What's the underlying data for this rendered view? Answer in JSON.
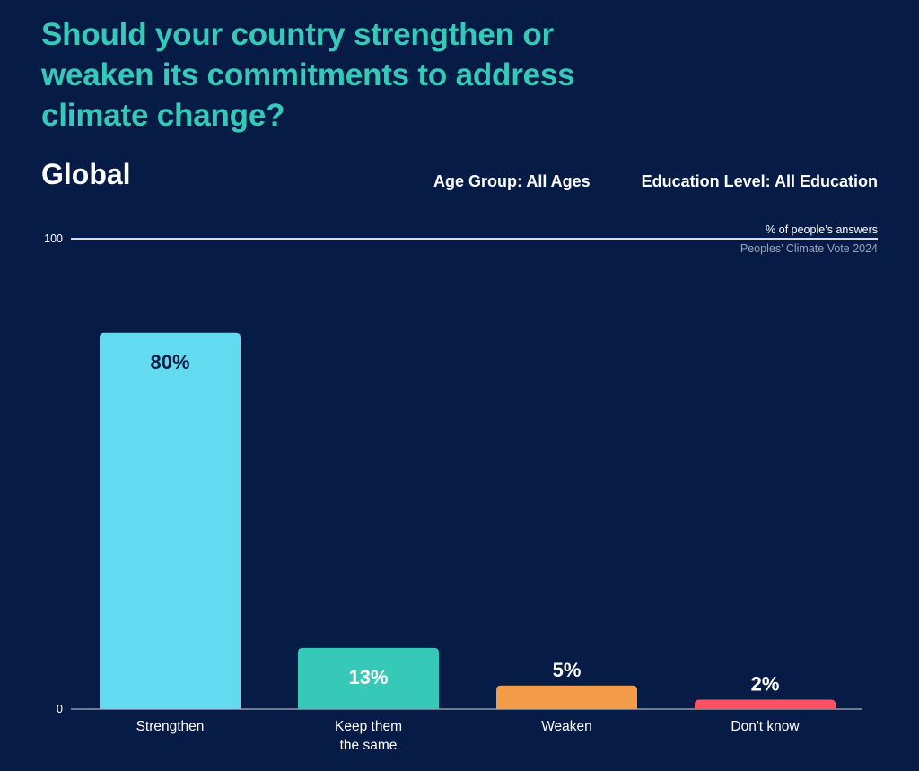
{
  "header": {
    "title": "Should your country strengthen or weaken its commitments to address climate change?",
    "region": "Global",
    "filters": {
      "age_group": "Age Group: All Ages",
      "education_level": "Education Level: All Education"
    },
    "unit_label": "% of people’s answers",
    "source_label": "Peoples’ Climate Vote 2024"
  },
  "chart_data": {
    "type": "bar",
    "title": "Should your country strengthen or weaken its commitments to address climate change?",
    "subtitle": "Global",
    "xlabel": "",
    "ylabel": "% of people’s answers",
    "ylim": [
      0,
      100
    ],
    "yticks": [
      "0",
      "100"
    ],
    "grid": false,
    "categories": [
      [
        "Strengthen"
      ],
      [
        "Keep them",
        "the same"
      ],
      [
        "Weaken"
      ],
      [
        "Don't know"
      ]
    ],
    "values": [
      80,
      13,
      5,
      2
    ],
    "value_labels": [
      "80%",
      "13%",
      "5%",
      "2%"
    ],
    "colors": [
      "#62dbf0",
      "#37c9b8",
      "#f29c4a",
      "#ff5164"
    ],
    "label_colors": [
      "#061b45",
      "#ffffff",
      "#ffffff",
      "#ffffff"
    ],
    "source": "Peoples’ Climate Vote 2024"
  }
}
